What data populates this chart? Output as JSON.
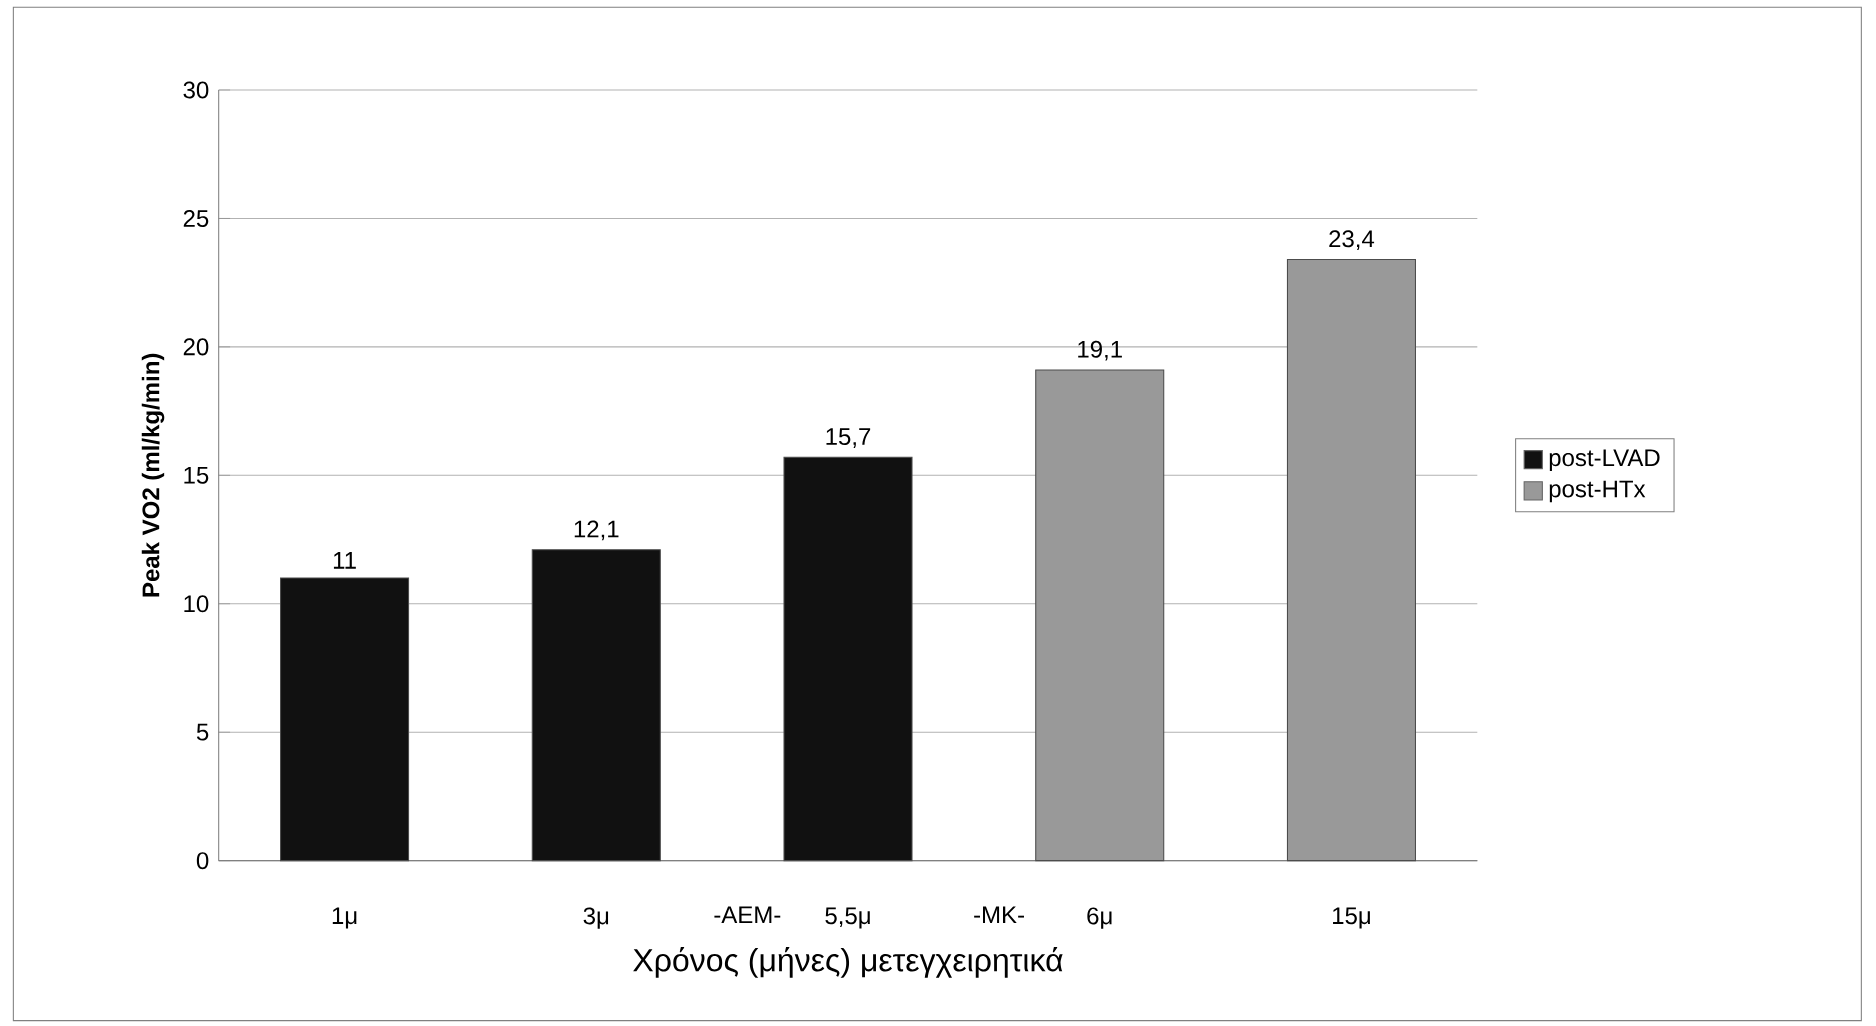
{
  "chart_data": {
    "type": "bar",
    "ylabel": "Peak VO2 (ml/kg/min)",
    "xlabel": "Χρόνος (μήνες) μετεγχειρητικά",
    "categories": [
      "1μ",
      "3μ",
      "5,5μ",
      "6μ",
      "15μ"
    ],
    "series": [
      {
        "name": "post-LVAD",
        "color": "#111111",
        "values": [
          11,
          12.1,
          15.7,
          null,
          null
        ],
        "value_labels": [
          "11",
          "12,1",
          "15,7",
          null,
          null
        ]
      },
      {
        "name": "post-HTx",
        "color": "#999999",
        "values": [
          null,
          null,
          null,
          19.1,
          23.4
        ],
        "value_labels": [
          null,
          null,
          null,
          "19,1",
          "23,4"
        ]
      }
    ],
    "annotations": [
      "-AEM-",
      "-MK-"
    ],
    "ylim": [
      0,
      30
    ],
    "yticks": [
      0,
      5,
      10,
      15,
      20,
      25,
      30
    ],
    "grid": "y",
    "legend": "right"
  }
}
